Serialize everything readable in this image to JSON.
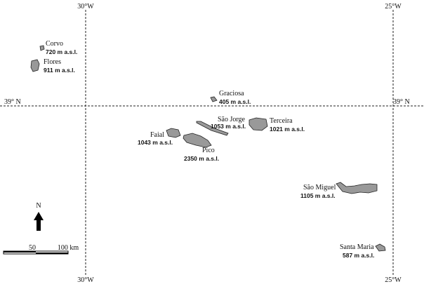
{
  "grid": {
    "meridians": [
      {
        "top": "30°W",
        "bottom": "30°W"
      },
      {
        "top": "25°W",
        "bottom": "25°W"
      }
    ],
    "parallel": {
      "left": "39° N",
      "right": "39° N"
    }
  },
  "islands": [
    {
      "name": "Corvo",
      "elevation": "720 m a.s.l."
    },
    {
      "name": "Flores",
      "elevation": "911 m a.s.l."
    },
    {
      "name": "Graciosa",
      "elevation": "405 m a.s.l."
    },
    {
      "name": "São Jorge",
      "elevation": "1053 m a.s.l."
    },
    {
      "name": "Terceira",
      "elevation": "1021 m a.s.l."
    },
    {
      "name": "Faial",
      "elevation": "1043 m a.s.l."
    },
    {
      "name": "Pico",
      "elevation": "2350 m a.s.l."
    },
    {
      "name": "São Miguel",
      "elevation": "1105 m a.s.l."
    },
    {
      "name": "Santa Maria",
      "elevation": "587 m a.s.l."
    }
  ],
  "north": "N",
  "scale": {
    "labels": [
      "50",
      "100 km"
    ]
  }
}
